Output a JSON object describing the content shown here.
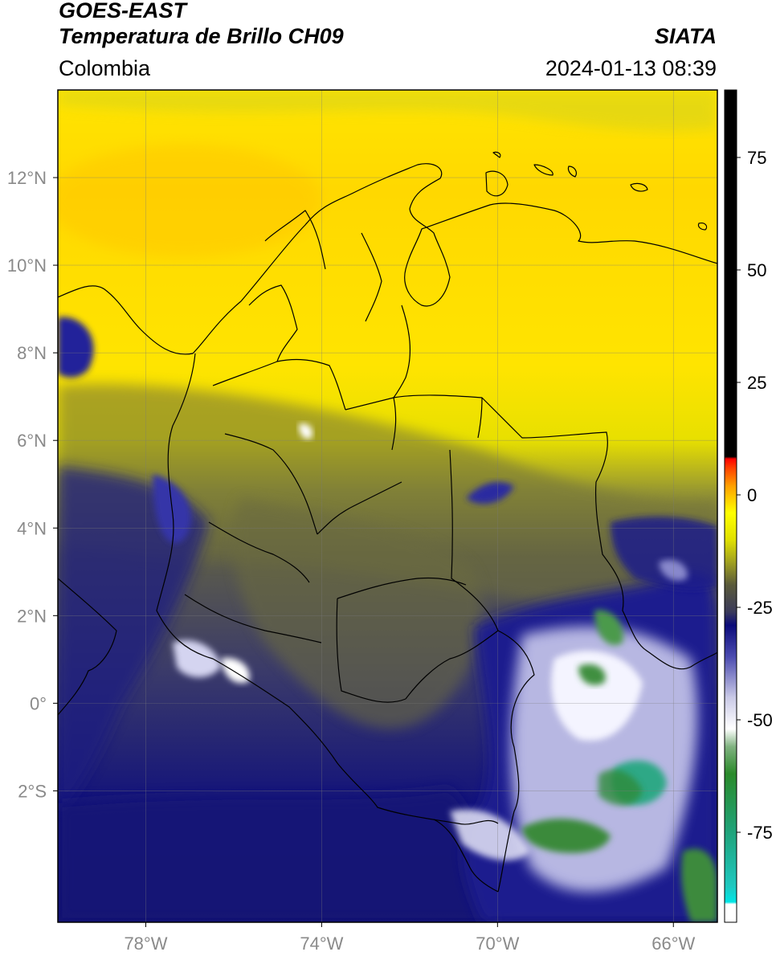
{
  "header": {
    "satellite": "GOES-EAST",
    "product": "Temperatura de Brillo CH09",
    "organization": "SIATA",
    "region": "Colombia",
    "timestamp": "2024-01-13 08:39"
  },
  "map": {
    "lon_range": [
      -80,
      -65
    ],
    "lat_range": [
      -5,
      14
    ],
    "lon_ticks": [
      {
        "value": -78,
        "label": "78°W"
      },
      {
        "value": -74,
        "label": "74°W"
      },
      {
        "value": -70,
        "label": "70°W"
      },
      {
        "value": -66,
        "label": "66°W"
      }
    ],
    "lat_ticks": [
      {
        "value": 12,
        "label": "12°N"
      },
      {
        "value": 10,
        "label": "10°N"
      },
      {
        "value": 8,
        "label": "8°N"
      },
      {
        "value": 6,
        "label": "6°N"
      },
      {
        "value": 4,
        "label": "4°N"
      },
      {
        "value": 2,
        "label": "2°N"
      },
      {
        "value": 0,
        "label": "0°"
      },
      {
        "value": -2,
        "label": "2°S"
      }
    ],
    "grid": true
  },
  "colorbar": {
    "range": [
      -95,
      90
    ],
    "ticks": [
      {
        "value": 75,
        "label": "75"
      },
      {
        "value": 50,
        "label": "50"
      },
      {
        "value": 25,
        "label": "25"
      },
      {
        "value": 0,
        "label": "0"
      },
      {
        "value": -25,
        "label": "-25"
      },
      {
        "value": -50,
        "label": "-50"
      },
      {
        "value": -75,
        "label": "-75"
      }
    ],
    "stops": [
      {
        "value": -95,
        "color": "#ffffff"
      },
      {
        "value": -91,
        "color": "#ffffff"
      },
      {
        "value": -90.5,
        "color": "#00e5e5"
      },
      {
        "value": -87,
        "color": "#1ec8c0"
      },
      {
        "value": -75,
        "color": "#1fa37a"
      },
      {
        "value": -62,
        "color": "#2a8a2a"
      },
      {
        "value": -56,
        "color": "#7fb27f"
      },
      {
        "value": -52,
        "color": "#ffffff"
      },
      {
        "value": -45,
        "color": "#c9c9e6"
      },
      {
        "value": -36,
        "color": "#4b4bb0"
      },
      {
        "value": -29,
        "color": "#0a0a7a"
      },
      {
        "value": -26,
        "color": "#3a3a5a"
      },
      {
        "value": -20,
        "color": "#5a5a3a"
      },
      {
        "value": -15,
        "color": "#a0a020"
      },
      {
        "value": -10,
        "color": "#e0e000"
      },
      {
        "value": -4,
        "color": "#ffff00"
      },
      {
        "value": 2,
        "color": "#ffa000"
      },
      {
        "value": 6,
        "color": "#ff4000"
      },
      {
        "value": 8,
        "color": "#ff0000"
      },
      {
        "value": 8.5,
        "color": "#000000"
      },
      {
        "value": 90,
        "color": "#000000"
      }
    ]
  },
  "field_colors": {
    "clear_warm": "#ffff00",
    "clear_warm_orange": "#ffd400",
    "mid_olive": "#8a8a3a",
    "mid_gray": "#5a5a50",
    "cold_navy": "#101080",
    "colder_blue": "#5050b8",
    "very_cold_white": "#f0f0ff",
    "coldest_green": "#2e8b3a",
    "coldest_teal": "#2aa889"
  }
}
